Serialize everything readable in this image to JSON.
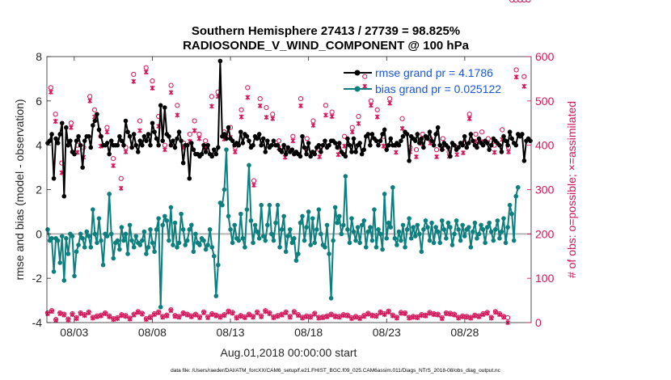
{
  "chart_data": {
    "type": "line",
    "title": "Southern Hemisphere 27413 / 27739 = 98.825%",
    "subtitle": "RADIOSONDE_V_WIND_COMPONENT @ 100 hPa",
    "xlabel": "Aug.01,2018 00:00:00 start",
    "ylabel": "rmse and bias (model - observation)",
    "y2label": "# of obs: o=possible; ×=assimilated",
    "footer": "data file: /Users/raeder/DAI/ATM_forcXX/CAM6_setup/f.e21.FHIST_BGC.f09_025.CAM6assim.011/Diags_NTrS_2018-08/obs_diag_output.nc",
    "xlim": [
      1.25,
      32.25
    ],
    "ylim": [
      -4,
      8
    ],
    "y2lim": [
      0,
      600
    ],
    "x_ticks": [
      3,
      8,
      13,
      18,
      23,
      28
    ],
    "x_tick_labels": [
      "08/03",
      "08/08",
      "08/13",
      "08/18",
      "08/23",
      "08/28"
    ],
    "y_ticks": [
      -4,
      -2,
      0,
      2,
      4,
      6,
      8
    ],
    "y_tick_labels": [
      "-4",
      "-2",
      "0",
      "2",
      "4",
      "6",
      "8"
    ],
    "y2_ticks": [
      0,
      100,
      200,
      300,
      400,
      500,
      600
    ],
    "y2_tick_labels": [
      "0",
      "100",
      "200",
      "300",
      "400",
      "500",
      "600"
    ],
    "legend": {
      "position": "top-right",
      "entries": [
        {
          "label": "rmse grand pr = 4.1786",
          "color": "#000000"
        },
        {
          "label": "bias grand pr = 0.025122",
          "color": "#0e7f7f"
        }
      ]
    },
    "colors": {
      "rmse": "#000000",
      "bias": "#0e7f7f",
      "obs": "#d4145a",
      "zero_line": "#b5b5b5"
    },
    "series": [
      {
        "name": "rmse",
        "axis": "left",
        "values": [
          4.1,
          4.2,
          4.5,
          2.5,
          4.3,
          4.1,
          4.5,
          5.0,
          1.7,
          4.8,
          4.0,
          4.2,
          3.7,
          3.6,
          4.2,
          4.4,
          4.0,
          3.0,
          4.2,
          4.4,
          4.4,
          3.9,
          4.9,
          5.1,
          5.4,
          4.7,
          4.4,
          4.0,
          4.0,
          4.1,
          3.6,
          4.2,
          4.0,
          4.0,
          4.0,
          4.4,
          4.2,
          4.0,
          5.1,
          4.6,
          4.4,
          3.9,
          4.5,
          4.0,
          3.7,
          4.2,
          4.0,
          4.4,
          4.2,
          4.5,
          4.0,
          5.0,
          4.6,
          4.3,
          4.0,
          5.8,
          4.2,
          5.7,
          4.5,
          4.4,
          4.0,
          4.2,
          3.9,
          4.3,
          4.6,
          4.2,
          3.2,
          4.0,
          4.0,
          2.5,
          4.1,
          3.8,
          3.6,
          3.6,
          3.5,
          3.6,
          4.0,
          3.7,
          4.0,
          3.6,
          3.5,
          3.8,
          3.6,
          3.9,
          7.8,
          4.4,
          4.5,
          4.3,
          4.8,
          4.3,
          4.2,
          4.0,
          4.1,
          4.0,
          4.6,
          4.1,
          4.5,
          4.4,
          4.2,
          3.9,
          4.0,
          4.4,
          4.3,
          4.5,
          4.0,
          4.3,
          3.7,
          4.2,
          3.9,
          4.0,
          4.2,
          4.0,
          4.0,
          3.8,
          3.7,
          4.0,
          3.6,
          3.9,
          3.7,
          3.8,
          3.6,
          3.7,
          3.6,
          3.5,
          4.4,
          3.9,
          3.6,
          4.1,
          3.5,
          3.7,
          3.6,
          3.9,
          4.0,
          3.7,
          4.0,
          4.2,
          3.9,
          4.0,
          4.2,
          4.2,
          4.1,
          3.9,
          4.1,
          3.7,
          3.6,
          3.5,
          4.3,
          4.0,
          3.7,
          4.3,
          3.7,
          4.0,
          4.1,
          3.6,
          3.8,
          4.4,
          4.5,
          4.0,
          4.5,
          4.3,
          4.2,
          4.0,
          4.2,
          4.5,
          4.7,
          3.8,
          4.0,
          4.3,
          4.0,
          4.0,
          4.1,
          4.0,
          4.2,
          4.4,
          4.6,
          4.5,
          3.3,
          4.4,
          4.3,
          4.2,
          4.5,
          4.1,
          4.3,
          3.9,
          4.4,
          4.3,
          4.6,
          4.2,
          4.0,
          4.5,
          4.8,
          4.0,
          3.8,
          4.1,
          4.0,
          3.9,
          3.5,
          4.1,
          4.0,
          3.8,
          3.9,
          4.1,
          4.0,
          4.4,
          3.9,
          4.1,
          4.5,
          4.2,
          4.0,
          3.9,
          4.3,
          4.1,
          4.0,
          4.2,
          4.1,
          3.8,
          4.0,
          4.3,
          4.2,
          4.1,
          4.0,
          3.7,
          4.4,
          4.2,
          4.0,
          4.6,
          4.3,
          4.1,
          4.0,
          4.5,
          4.4,
          4.5,
          3.3,
          4.2,
          4.3,
          4.2
        ]
      },
      {
        "name": "bias",
        "axis": "left",
        "values": [
          0.2,
          -0.3,
          -0.2,
          -1.7,
          -0.2,
          -0.3,
          -1.3,
          -0.1,
          -2.1,
          -0.2,
          -0.9,
          0.0,
          -0.1,
          -1.9,
          -0.8,
          -0.5,
          0.0,
          -0.2,
          -0.6,
          0.1,
          -0.1,
          -0.6,
          1.1,
          0.0,
          -0.4,
          0.7,
          -0.3,
          -1.4,
          0.0,
          -0.1,
          1.8,
          0.0,
          -1.1,
          -0.4,
          -0.3,
          -0.7,
          0.3,
          -0.3,
          0.0,
          -0.9,
          0.4,
          -0.3,
          -0.6,
          -0.1,
          -0.4,
          -0.5,
          -0.3,
          0.1,
          -0.9,
          -0.6,
          0.2,
          -0.4,
          -0.8,
          0.2,
          0.7,
          -3.3,
          0.4,
          0.8,
          0.6,
          -0.3,
          1.2,
          -0.5,
          0.5,
          -0.6,
          -0.4,
          0.9,
          0.2,
          -0.5,
          -0.3,
          0.2,
          0.4,
          -0.8,
          0.0,
          -0.4,
          -0.5,
          -0.2,
          -0.3,
          -0.7,
          -0.5,
          0.2,
          -0.6,
          -1.0,
          -2.8,
          -1.4,
          1.4,
          1.3,
          2.0,
          3.8,
          0.8,
          0.2,
          -0.4,
          0.4,
          -0.2,
          -0.3,
          0.9,
          -0.2,
          -0.6,
          1.1,
          3.1,
          0.6,
          -0.4,
          0.4,
          0.1,
          -0.2,
          1.3,
          -0.1,
          -0.3,
          0.4,
          1.3,
          0.0,
          -0.3,
          0.5,
          1.3,
          -0.6,
          0.2,
          0.8,
          -0.8,
          -0.1,
          0.2,
          -0.4,
          -0.2,
          -1.2,
          -0.9,
          0.5,
          0.8,
          -0.3,
          0.3,
          1.0,
          -0.5,
          0.7,
          -0.4,
          0.2,
          1.1,
          0.0,
          -0.5,
          -0.6,
          0.4,
          -0.9,
          -2.9,
          -0.3,
          1.2,
          0.5,
          0.8,
          0.0,
          0.4,
          2.6,
          0.2,
          -0.4,
          0.7,
          0.1,
          -0.3,
          0.3,
          -0.4,
          0.4,
          0.6,
          -0.6,
          0.1,
          0.3,
          -0.3,
          1.1,
          -0.6,
          0.2,
          0.0,
          -0.7,
          1.8,
          -0.2,
          0.5,
          0.3,
          2.1,
          -0.2,
          -0.5,
          0.1,
          -0.3,
          0.4,
          -0.6,
          0.2,
          0.7,
          -0.2,
          0.3,
          -0.1,
          0.4,
          0.0,
          -0.8,
          0.2,
          0.6,
          0.3,
          -0.3,
          0.5,
          -0.4,
          0.3,
          0.1,
          -0.4,
          0.6,
          0.2,
          -0.2,
          0.5,
          0.3,
          -0.5,
          0.0,
          0.6,
          0.2,
          -0.3,
          0.4,
          -0.1,
          0.2,
          0.3,
          -0.6,
          0.1,
          0.5,
          -0.2,
          0.0,
          0.4,
          0.2,
          -0.4,
          0.3,
          0.5,
          0.1,
          -0.3,
          0.2,
          0.6,
          -0.2,
          0.1,
          0.7,
          -0.4,
          0.3,
          1.3,
          0.9,
          -0.3,
          1.7,
          2.1
        ]
      },
      {
        "name": "obs_possible",
        "axis": "right",
        "marker": "o",
        "values": [
          22,
          10,
          27,
          13,
          7,
          17,
          22,
          10,
          19,
          14,
          8,
          12,
          20,
          26,
          11,
          19,
          22,
          13,
          18,
          15,
          24,
          11,
          12,
          20,
          15,
          28,
          17,
          9,
          22,
          13,
          15,
          25,
          9,
          17,
          11,
          21,
          18,
          14,
          16,
          24,
          10,
          14,
          19,
          13,
          25,
          16,
          21,
          13,
          9,
          17,
          13,
          27,
          20,
          15,
          24,
          13,
          14,
          19,
          17,
          21,
          29,
          10,
          16,
          22,
          14,
          17,
          22,
          15,
          19,
          23,
          15,
          12,
          19,
          27,
          13,
          10,
          24,
          11,
          13,
          21,
          20,
          25,
          17,
          20,
          14,
          22,
          18,
          14,
          26,
          16,
          23,
          18,
          12,
          20,
          16,
          23,
          13,
          11,
          19,
          25,
          14,
          18,
          24,
          20,
          15,
          11,
          27,
          17,
          22,
          11,
          13,
          21,
          16,
          15,
          19,
          22,
          24,
          17,
          14,
          19,
          25,
          11,
          18,
          22,
          12,
          21,
          15,
          28,
          14,
          15,
          21,
          16,
          12,
          23,
          13,
          20,
          15,
          24,
          19,
          19,
          15,
          24,
          14,
          15,
          18,
          23,
          17,
          26,
          11,
          21,
          14,
          24,
          11,
          22,
          16,
          29,
          21,
          15,
          17,
          22,
          16,
          14,
          24,
          13,
          20,
          15,
          26,
          14,
          17,
          21,
          12,
          19,
          23,
          15,
          22,
          16,
          12,
          24,
          14,
          20,
          13,
          27,
          18,
          22,
          17,
          14,
          23,
          16,
          20,
          14,
          19,
          25,
          11,
          17,
          22,
          13,
          21,
          16,
          19,
          24,
          12,
          20,
          15,
          26,
          14,
          18,
          12,
          22,
          17,
          21,
          15,
          13,
          20,
          16,
          23,
          18,
          12,
          19,
          25,
          15,
          20,
          22,
          14,
          18,
          11
        ]
      },
      {
        "name": "obs_assimilated",
        "axis": "right",
        "marker": "x",
        "values": [
          20,
          8,
          25,
          11,
          5,
          15,
          20,
          8,
          17,
          12,
          6,
          10,
          18,
          24,
          9,
          17,
          20,
          11,
          16,
          13,
          22,
          9,
          10,
          18,
          13,
          26,
          15,
          7,
          20,
          11,
          13,
          23,
          7,
          15,
          9,
          19,
          16,
          12,
          14,
          22,
          8,
          12,
          17,
          11,
          23,
          14,
          19,
          11,
          7,
          15,
          11,
          25,
          18,
          13,
          22,
          11,
          12,
          17,
          15,
          19,
          27,
          8,
          14,
          20,
          12,
          15,
          20,
          13,
          17,
          21,
          13,
          10,
          17,
          25,
          11,
          8,
          22,
          9,
          11,
          19,
          18,
          23,
          15,
          18,
          12,
          20,
          16,
          12,
          24,
          14,
          21,
          16,
          10,
          18,
          14,
          21,
          11,
          9,
          17,
          23,
          12,
          16,
          22,
          18,
          13,
          9,
          25,
          15,
          20,
          9,
          11,
          19,
          14,
          13,
          17,
          20,
          22,
          15,
          12,
          17,
          23,
          9,
          16,
          20,
          10,
          19,
          13,
          26,
          12,
          13,
          19,
          14,
          10,
          21,
          11,
          18,
          13,
          22,
          17,
          17,
          13,
          22,
          12,
          13,
          16,
          21,
          15,
          24,
          9,
          19,
          12,
          22,
          9,
          20,
          14,
          27,
          19,
          13,
          15,
          20,
          14,
          12,
          22,
          11,
          18,
          13,
          24,
          12,
          15,
          19,
          10,
          17,
          21,
          13,
          20,
          14,
          10,
          22,
          12,
          18,
          11,
          25,
          16,
          20,
          15,
          12,
          21,
          14,
          18,
          12,
          17,
          23,
          9,
          15,
          20,
          11,
          19,
          14,
          17,
          22,
          10,
          18,
          13,
          24,
          12,
          16,
          10,
          20,
          15,
          19,
          13,
          11,
          18,
          14,
          21,
          16,
          10,
          17,
          23,
          13,
          18,
          20,
          12,
          16,
          0
        ]
      }
    ],
    "upper_obs_possible": [
      [
        1.5,
        530
      ],
      [
        1.8,
        470
      ],
      [
        2.2,
        360
      ],
      [
        2.8,
        450
      ],
      [
        3.2,
        400
      ],
      [
        3.6,
        395
      ],
      [
        4.0,
        510
      ],
      [
        4.3,
        480
      ],
      [
        4.7,
        420
      ],
      [
        5.1,
        440
      ],
      [
        5.5,
        370
      ],
      [
        6.0,
        325
      ],
      [
        6.3,
        395
      ],
      [
        6.8,
        560
      ],
      [
        7.2,
        455
      ],
      [
        7.6,
        575
      ],
      [
        8.0,
        545
      ],
      [
        8.4,
        465
      ],
      [
        8.8,
        400
      ],
      [
        9.2,
        535
      ],
      [
        9.6,
        490
      ],
      [
        10.0,
        405
      ],
      [
        10.4,
        425
      ],
      [
        10.7,
        455
      ],
      [
        11.0,
        425
      ],
      [
        11.4,
        410
      ],
      [
        11.8,
        510
      ],
      [
        12.2,
        520
      ],
      [
        12.6,
        430
      ],
      [
        13.0,
        440
      ],
      [
        13.3,
        395
      ],
      [
        13.7,
        480
      ],
      [
        14.1,
        530
      ],
      [
        14.5,
        320
      ],
      [
        14.9,
        505
      ],
      [
        15.3,
        485
      ],
      [
        15.7,
        470
      ],
      [
        16.1,
        410
      ],
      [
        16.5,
        395
      ],
      [
        17.0,
        420
      ],
      [
        17.5,
        505
      ],
      [
        17.9,
        415
      ],
      [
        18.3,
        455
      ],
      [
        18.7,
        390
      ],
      [
        19.1,
        490
      ],
      [
        19.5,
        475
      ],
      [
        19.9,
        395
      ],
      [
        20.3,
        420
      ],
      [
        20.8,
        440
      ],
      [
        21.2,
        465
      ],
      [
        21.6,
        555
      ],
      [
        22.0,
        500
      ],
      [
        22.4,
        480
      ],
      [
        22.8,
        420
      ],
      [
        23.2,
        505
      ],
      [
        23.6,
        400
      ],
      [
        24.0,
        460
      ],
      [
        24.5,
        395
      ],
      [
        24.9,
        390
      ],
      [
        25.3,
        425
      ],
      [
        25.8,
        415
      ],
      [
        26.2,
        390
      ],
      [
        26.6,
        415
      ],
      [
        27.0,
        385
      ],
      [
        27.5,
        395
      ],
      [
        27.9,
        405
      ],
      [
        28.3,
        470
      ],
      [
        28.7,
        425
      ],
      [
        29.1,
        430
      ],
      [
        29.5,
        415
      ],
      [
        29.9,
        400
      ],
      [
        30.4,
        435
      ],
      [
        30.8,
        395
      ],
      [
        31.3,
        570
      ],
      [
        31.8,
        555
      ]
    ]
  }
}
